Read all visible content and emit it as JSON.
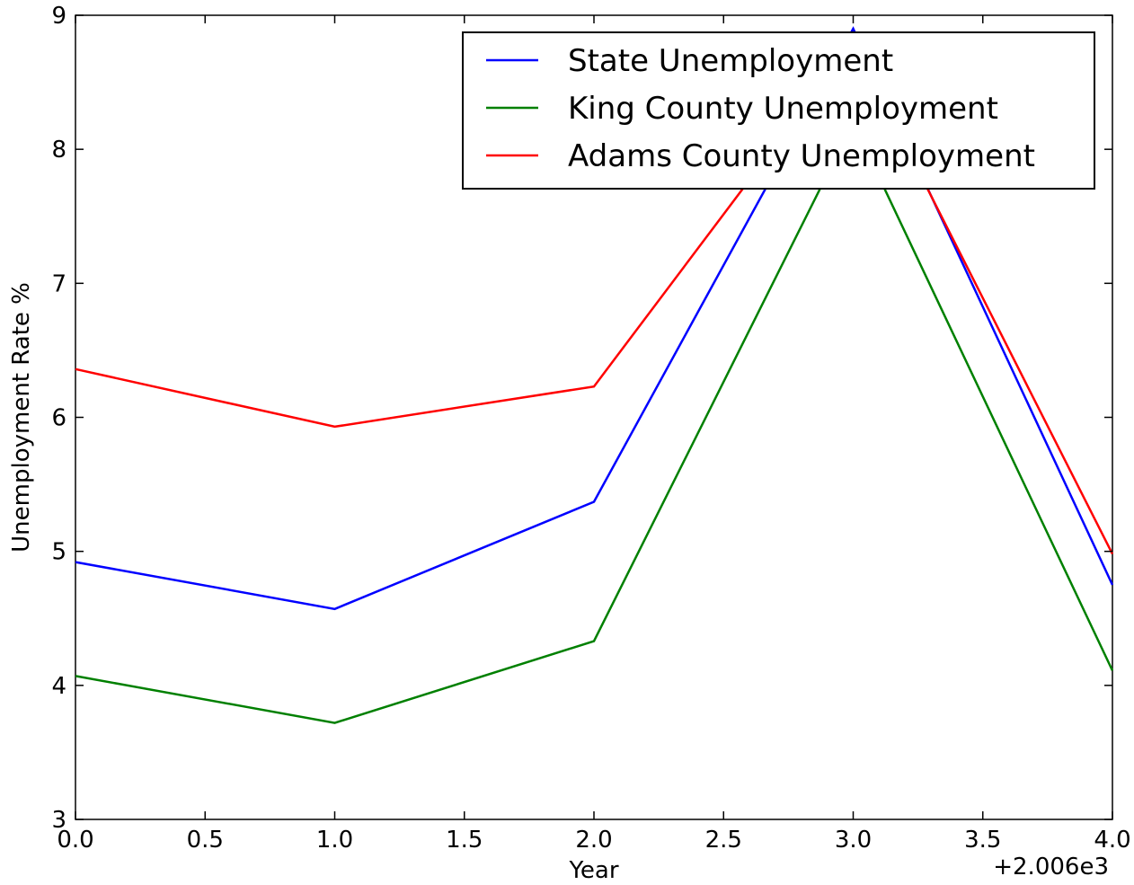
{
  "chart_data": {
    "type": "line",
    "title": "",
    "xlabel": "Year",
    "ylabel": "Unemployment Rate %",
    "x_offset_label": "+2.006e3",
    "xlim": [
      0.0,
      4.0
    ],
    "ylim": [
      3,
      9
    ],
    "x_ticks": [
      0.0,
      0.5,
      1.0,
      1.5,
      2.0,
      2.5,
      3.0,
      3.5,
      4.0
    ],
    "x_tick_labels": [
      "0.0",
      "0.5",
      "1.0",
      "1.5",
      "2.0",
      "2.5",
      "3.0",
      "3.5",
      "4.0"
    ],
    "y_ticks": [
      3,
      4,
      5,
      6,
      7,
      8,
      9
    ],
    "y_tick_labels": [
      "3",
      "4",
      "5",
      "6",
      "7",
      "8",
      "9"
    ],
    "grid": false,
    "legend_position": "top-right",
    "x": [
      0,
      1,
      2,
      3,
      4
    ],
    "series": [
      {
        "name": "State Unemployment",
        "color": "#0000ff",
        "values": [
          4.92,
          4.57,
          5.37,
          8.9,
          4.75
        ]
      },
      {
        "name": "King County Unemployment",
        "color": "#008000",
        "values": [
          4.07,
          3.72,
          4.33,
          8.2,
          4.11
        ]
      },
      {
        "name": "Adams County Unemployment",
        "color": "#ff0000",
        "values": [
          6.36,
          5.93,
          6.23,
          8.8,
          4.98
        ]
      }
    ]
  }
}
